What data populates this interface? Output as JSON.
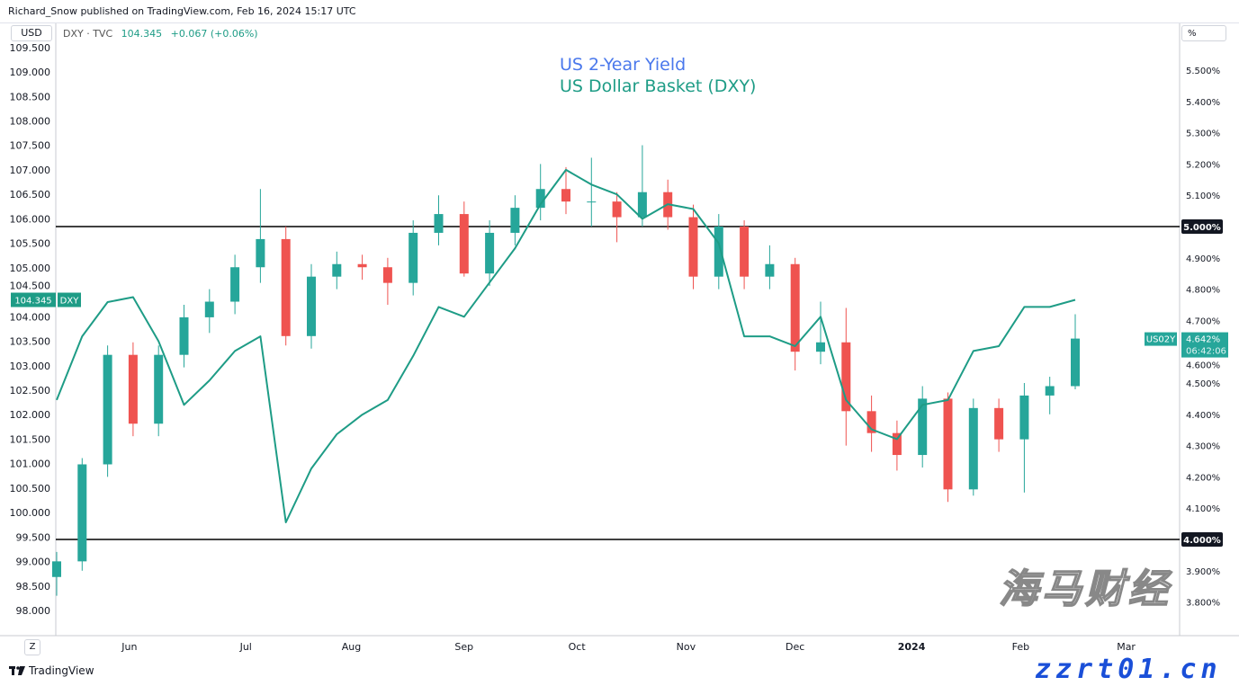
{
  "header": {
    "published": "Richard_Snow published on TradingView.com, Feb 16, 2024 15:17 UTC"
  },
  "left_currency_button": "USD",
  "right_unit_button": "%",
  "legend": {
    "symbol": "DXY · TVC",
    "price": "104.345",
    "change": "+0.067 (+0.06%)"
  },
  "footer": {
    "brand": "TradingView",
    "timezone_button": "Z"
  },
  "watermark": {
    "text": "海马财经",
    "site": "zzrt01.cn"
  },
  "colors": {
    "up": "#26a69a",
    "down": "#ef5350",
    "dxy_line": "#1e9c86",
    "yield_title": "#4a78ec",
    "level_line": "#000000"
  },
  "chart_data": {
    "type": "candlestick+line",
    "titles": [
      "US 2-Year Yield",
      "US Dollar Basket (DXY)"
    ],
    "dates": [
      "2023-05-12",
      "2023-05-19",
      "2023-05-26",
      "2023-06-02",
      "2023-06-09",
      "2023-06-16",
      "2023-06-23",
      "2023-06-30",
      "2023-07-07",
      "2023-07-14",
      "2023-07-21",
      "2023-07-28",
      "2023-08-04",
      "2023-08-11",
      "2023-08-18",
      "2023-08-25",
      "2023-09-01",
      "2023-09-08",
      "2023-09-15",
      "2023-09-22",
      "2023-09-29",
      "2023-10-06",
      "2023-10-13",
      "2023-10-20",
      "2023-10-27",
      "2023-11-03",
      "2023-11-10",
      "2023-11-17",
      "2023-11-24",
      "2023-12-01",
      "2023-12-08",
      "2023-12-15",
      "2023-12-22",
      "2023-12-29",
      "2024-01-05",
      "2024-01-12",
      "2024-01-19",
      "2024-01-26",
      "2024-02-02",
      "2024-02-09",
      "2024-02-16"
    ],
    "us02y": {
      "name": "US02Y",
      "axis": "right",
      "unit": "%",
      "ohlc": [
        [
          3.88,
          3.96,
          3.82,
          3.93
        ],
        [
          3.93,
          4.26,
          3.9,
          4.24
        ],
        [
          4.24,
          4.62,
          4.2,
          4.59
        ],
        [
          4.59,
          4.63,
          4.33,
          4.37
        ],
        [
          4.37,
          4.62,
          4.33,
          4.59
        ],
        [
          4.59,
          4.75,
          4.55,
          4.71
        ],
        [
          4.71,
          4.8,
          4.66,
          4.76
        ],
        [
          4.76,
          4.91,
          4.72,
          4.87
        ],
        [
          4.87,
          5.12,
          4.82,
          4.96
        ],
        [
          4.96,
          5.0,
          4.62,
          4.65
        ],
        [
          4.65,
          4.88,
          4.61,
          4.84
        ],
        [
          4.84,
          4.92,
          4.8,
          4.88
        ],
        [
          4.88,
          4.91,
          4.83,
          4.87
        ],
        [
          4.87,
          4.9,
          4.75,
          4.82
        ],
        [
          4.82,
          5.02,
          4.78,
          4.98
        ],
        [
          4.98,
          5.1,
          4.94,
          5.04
        ],
        [
          5.04,
          5.08,
          4.84,
          4.85
        ],
        [
          4.85,
          5.02,
          4.81,
          4.98
        ],
        [
          4.98,
          5.1,
          4.94,
          5.06
        ],
        [
          5.06,
          5.2,
          5.02,
          5.12
        ],
        [
          5.12,
          5.19,
          5.04,
          5.08
        ],
        [
          5.08,
          5.22,
          5.0,
          5.08
        ],
        [
          5.08,
          5.11,
          4.95,
          5.03
        ],
        [
          5.03,
          5.26,
          5.0,
          5.11
        ],
        [
          5.11,
          5.15,
          4.99,
          5.03
        ],
        [
          5.03,
          5.07,
          4.8,
          4.84
        ],
        [
          4.84,
          5.04,
          4.8,
          5.0
        ],
        [
          5.0,
          5.02,
          4.8,
          4.84
        ],
        [
          4.84,
          4.94,
          4.8,
          4.88
        ],
        [
          4.88,
          4.9,
          4.54,
          4.6
        ],
        [
          4.6,
          4.76,
          4.56,
          4.63
        ],
        [
          4.63,
          4.74,
          4.3,
          4.41
        ],
        [
          4.41,
          4.46,
          4.28,
          4.34
        ],
        [
          4.34,
          4.38,
          4.22,
          4.27
        ],
        [
          4.27,
          4.49,
          4.23,
          4.45
        ],
        [
          4.45,
          4.47,
          4.12,
          4.16
        ],
        [
          4.16,
          4.45,
          4.14,
          4.42
        ],
        [
          4.42,
          4.45,
          4.28,
          4.32
        ],
        [
          4.32,
          4.5,
          4.15,
          4.46
        ],
        [
          4.46,
          4.52,
          4.4,
          4.49
        ],
        [
          4.49,
          4.72,
          4.48,
          4.642
        ]
      ],
      "last_label": "4.642%",
      "countdown": "06:42:06"
    },
    "dxy": {
      "name": "DXY",
      "axis": "left",
      "values": [
        102.3,
        103.6,
        104.3,
        104.4,
        103.5,
        102.2,
        102.7,
        103.3,
        103.6,
        99.8,
        100.9,
        101.6,
        102.0,
        102.3,
        103.2,
        104.2,
        104.0,
        104.7,
        105.4,
        106.3,
        107.0,
        106.7,
        106.5,
        106.0,
        106.3,
        106.2,
        105.5,
        103.6,
        103.6,
        103.4,
        104.0,
        102.3,
        101.7,
        101.5,
        102.2,
        102.3,
        103.3,
        103.4,
        104.2,
        104.2,
        104.345
      ],
      "last_label": "104.345"
    },
    "left_axis": {
      "range": [
        97.5,
        109.6
      ],
      "ticks": [
        "98.000",
        "98.500",
        "99.000",
        "99.500",
        "100.000",
        "100.500",
        "101.000",
        "101.500",
        "102.000",
        "102.500",
        "103.000",
        "103.500",
        "104.000",
        "104.500",
        "105.000",
        "105.500",
        "106.000",
        "106.500",
        "107.000",
        "107.500",
        "108.000",
        "108.500",
        "109.000",
        "109.500"
      ]
    },
    "right_axis": {
      "range": [
        3.785,
        5.62
      ],
      "ticks": [
        "3.800%",
        "3.900%",
        "4.000%",
        "4.100%",
        "4.200%",
        "4.300%",
        "4.400%",
        "4.500%",
        "4.600%",
        "4.700%",
        "4.800%",
        "4.900%",
        "5.000%",
        "5.100%",
        "5.200%",
        "5.300%",
        "5.400%",
        "5.500%"
      ]
    },
    "horizontal_levels": [
      {
        "value": 5.0,
        "label": "5.000%"
      },
      {
        "value": 4.0,
        "label": "4.000%"
      }
    ],
    "x_ticks": [
      [
        "2023-06-01",
        "Jun"
      ],
      [
        "2023-07-03",
        "Jul"
      ],
      [
        "2023-08-01",
        "Aug"
      ],
      [
        "2023-09-01",
        "Sep"
      ],
      [
        "2023-10-02",
        "Oct"
      ],
      [
        "2023-11-01",
        "Nov"
      ],
      [
        "2023-12-01",
        "Dec"
      ],
      [
        "2024-01-02",
        "2024"
      ],
      [
        "2024-02-01",
        "Feb"
      ],
      [
        "2024-03-01",
        "Mar"
      ]
    ],
    "grid": false
  }
}
